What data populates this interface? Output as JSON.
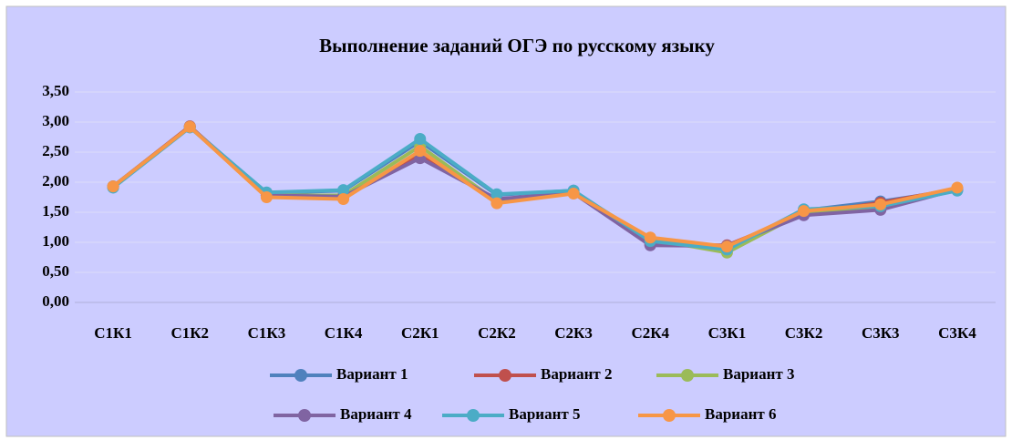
{
  "chart_data": {
    "type": "line",
    "title": "Выполнение заданий ОГЭ по русскому языку",
    "categories": [
      "С1К1",
      "С1К2",
      "С1К3",
      "С1К4",
      "С2К1",
      "С2К2",
      "С2К3",
      "С2К4",
      "С3К1",
      "С3К2",
      "С3К3",
      "С3К4"
    ],
    "series": [
      {
        "name": "Вариант 1",
        "color": "#4f81bd",
        "values": [
          1.92,
          2.92,
          1.82,
          1.86,
          2.68,
          1.79,
          1.86,
          1.0,
          0.9,
          1.53,
          1.68,
          1.87
        ]
      },
      {
        "name": "Вариант 2",
        "color": "#c0504d",
        "values": [
          1.93,
          2.93,
          1.78,
          1.75,
          2.45,
          1.7,
          1.82,
          0.96,
          0.95,
          1.47,
          1.66,
          1.89
        ]
      },
      {
        "name": "Вариант 3",
        "color": "#9bbb59",
        "values": [
          1.93,
          2.92,
          1.78,
          1.78,
          2.6,
          1.68,
          1.84,
          1.05,
          0.83,
          1.5,
          1.58,
          1.9
        ]
      },
      {
        "name": "Вариант 4",
        "color": "#8064a2",
        "values": [
          1.93,
          2.92,
          1.78,
          1.76,
          2.4,
          1.72,
          1.82,
          0.95,
          0.94,
          1.45,
          1.54,
          1.88
        ]
      },
      {
        "name": "Вариант 5",
        "color": "#4bacc6",
        "values": [
          1.91,
          2.91,
          1.83,
          1.87,
          2.72,
          1.8,
          1.86,
          1.02,
          0.88,
          1.55,
          1.6,
          1.86
        ]
      },
      {
        "name": "Вариант 6",
        "color": "#f79646",
        "values": [
          1.93,
          2.92,
          1.75,
          1.72,
          2.52,
          1.65,
          1.81,
          1.08,
          0.93,
          1.52,
          1.63,
          1.91
        ]
      }
    ],
    "ylim": [
      0,
      3.5
    ],
    "yticks": [
      {
        "value": 0,
        "label": "0,00"
      },
      {
        "value": 0.5,
        "label": "0,50"
      },
      {
        "value": 1,
        "label": "1,00"
      },
      {
        "value": 1.5,
        "label": "1,50"
      },
      {
        "value": 2,
        "label": "2,00"
      },
      {
        "value": 2.5,
        "label": "2,50"
      },
      {
        "value": 3,
        "label": "3,00"
      },
      {
        "value": 3.5,
        "label": "3,50"
      }
    ],
    "grid": true,
    "legend": "bottom"
  }
}
